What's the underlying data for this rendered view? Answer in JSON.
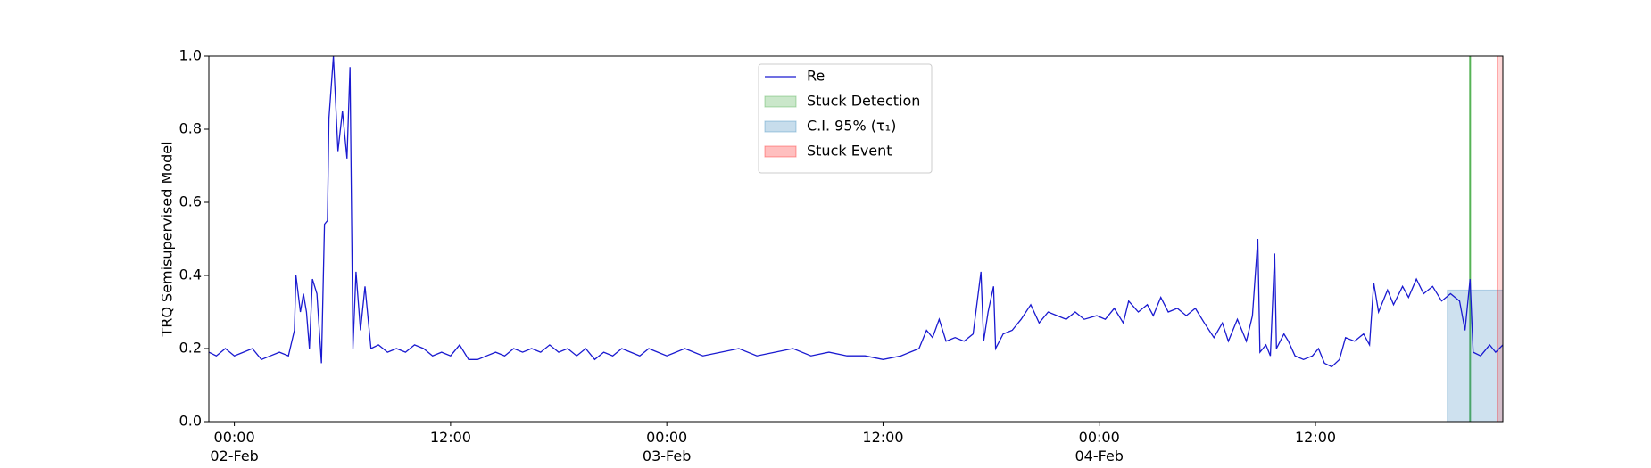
{
  "chart_data": {
    "type": "line",
    "ylabel": "TRQ Semisupervised Model",
    "x": [
      "1900-02-01 22:35",
      "1900-02-01 23:00",
      "1900-02-01 23:30",
      "1900-02-02 00:00",
      "1900-02-02 00:30",
      "1900-02-02 01:00",
      "1900-02-02 01:30",
      "1900-02-02 02:00",
      "1900-02-02 02:30",
      "1900-02-02 03:00",
      "1900-02-02 03:20",
      "1900-02-02 03:25",
      "1900-02-02 03:40",
      "1900-02-02 03:50",
      "1900-02-02 04:00",
      "1900-02-02 04:10",
      "1900-02-02 04:20",
      "1900-02-02 04:35",
      "1900-02-02 04:50",
      "1900-02-02 05:00",
      "1900-02-02 05:10",
      "1900-02-02 05:15",
      "1900-02-02 05:30",
      "1900-02-02 05:45",
      "1900-02-02 06:00",
      "1900-02-02 06:15",
      "1900-02-02 06:25",
      "1900-02-02 06:35",
      "1900-02-02 06:45",
      "1900-02-02 07:00",
      "1900-02-02 07:15",
      "1900-02-02 07:35",
      "1900-02-02 08:00",
      "1900-02-02 08:30",
      "1900-02-02 09:00",
      "1900-02-02 09:30",
      "1900-02-02 10:00",
      "1900-02-02 10:30",
      "1900-02-02 11:00",
      "1900-02-02 11:30",
      "1900-02-02 12:00",
      "1900-02-02 12:30",
      "1900-02-02 13:00",
      "1900-02-02 13:30",
      "1900-02-02 14:00",
      "1900-02-02 14:30",
      "1900-02-02 15:00",
      "1900-02-02 15:30",
      "1900-02-02 16:00",
      "1900-02-02 16:30",
      "1900-02-02 17:00",
      "1900-02-02 17:30",
      "1900-02-02 18:00",
      "1900-02-02 18:30",
      "1900-02-02 19:00",
      "1900-02-02 19:30",
      "1900-02-02 20:00",
      "1900-02-02 20:30",
      "1900-02-02 21:00",
      "1900-02-02 21:30",
      "1900-02-02 22:00",
      "1900-02-02 22:30",
      "1900-02-02 23:00",
      "1900-02-02 23:30",
      "1900-02-03 00:00",
      "1900-02-03 00:30",
      "1900-02-03 01:00",
      "1900-02-03 02:00",
      "1900-02-03 03:00",
      "1900-02-03 04:00",
      "1900-02-03 05:00",
      "1900-02-03 06:00",
      "1900-02-03 07:00",
      "1900-02-03 08:00",
      "1900-02-03 09:00",
      "1900-02-03 10:00",
      "1900-02-03 11:00",
      "1900-02-03 12:00",
      "1900-02-03 13:00",
      "1900-02-03 13:30",
      "1900-02-03 14:00",
      "1900-02-03 14:25",
      "1900-02-03 14:45",
      "1900-02-03 15:07",
      "1900-02-03 15:30",
      "1900-02-03 16:00",
      "1900-02-03 16:30",
      "1900-02-03 17:00",
      "1900-02-03 17:26",
      "1900-02-03 17:35",
      "1900-02-03 17:50",
      "1900-02-03 18:08",
      "1900-02-03 18:15",
      "1900-02-03 18:40",
      "1900-02-03 19:10",
      "1900-02-03 19:40",
      "1900-02-03 20:12",
      "1900-02-03 20:40",
      "1900-02-03 21:10",
      "1900-02-03 21:40",
      "1900-02-03 22:10",
      "1900-02-03 22:40",
      "1900-02-03 23:10",
      "1900-02-03 23:52",
      "1900-02-04 00:20",
      "1900-02-04 00:50",
      "1900-02-04 01:20",
      "1900-02-04 01:38",
      "1900-02-04 02:10",
      "1900-02-04 02:40",
      "1900-02-04 03:00",
      "1900-02-04 03:25",
      "1900-02-04 03:50",
      "1900-02-04 04:20",
      "1900-02-04 04:50",
      "1900-02-04 05:20",
      "1900-02-04 05:50",
      "1900-02-04 06:22",
      "1900-02-04 06:50",
      "1900-02-04 07:10",
      "1900-02-04 07:40",
      "1900-02-04 08:10",
      "1900-02-04 08:30",
      "1900-02-04 08:48",
      "1900-02-04 08:55",
      "1900-02-04 09:15",
      "1900-02-04 09:30",
      "1900-02-04 09:44",
      "1900-02-04 09:50",
      "1900-02-04 10:15",
      "1900-02-04 10:30",
      "1900-02-04 10:52",
      "1900-02-04 11:20",
      "1900-02-04 11:50",
      "1900-02-04 12:10",
      "1900-02-04 12:30",
      "1900-02-04 12:54",
      "1900-02-04 13:20",
      "1900-02-04 13:40",
      "1900-02-04 14:10",
      "1900-02-04 14:40",
      "1900-02-04 15:00",
      "1900-02-04 15:14",
      "1900-02-04 15:30",
      "1900-02-04 16:00",
      "1900-02-04 16:20",
      "1900-02-04 16:50",
      "1900-02-04 17:10",
      "1900-02-04 17:36",
      "1900-02-04 18:00",
      "1900-02-04 18:30",
      "1900-02-04 19:00",
      "1900-02-04 19:30",
      "1900-02-04 20:00",
      "1900-02-04 20:18",
      "1900-02-04 20:35",
      "1900-02-04 20:45",
      "1900-02-04 21:10",
      "1900-02-04 21:40",
      "1900-02-04 22:00",
      "1900-02-04 22:24"
    ],
    "series": [
      {
        "name": "Re",
        "color": "#1a1ad0",
        "values": [
          0.19,
          0.18,
          0.2,
          0.18,
          0.19,
          0.2,
          0.17,
          0.18,
          0.19,
          0.18,
          0.25,
          0.4,
          0.3,
          0.35,
          0.3,
          0.2,
          0.39,
          0.35,
          0.16,
          0.54,
          0.55,
          0.83,
          1.0,
          0.74,
          0.85,
          0.72,
          0.97,
          0.2,
          0.41,
          0.25,
          0.37,
          0.2,
          0.21,
          0.19,
          0.2,
          0.19,
          0.21,
          0.2,
          0.18,
          0.19,
          0.18,
          0.21,
          0.17,
          0.17,
          0.18,
          0.19,
          0.18,
          0.2,
          0.19,
          0.2,
          0.19,
          0.21,
          0.19,
          0.2,
          0.18,
          0.2,
          0.17,
          0.19,
          0.18,
          0.2,
          0.19,
          0.18,
          0.2,
          0.19,
          0.18,
          0.19,
          0.2,
          0.18,
          0.19,
          0.2,
          0.18,
          0.19,
          0.2,
          0.18,
          0.19,
          0.18,
          0.18,
          0.17,
          0.18,
          0.19,
          0.2,
          0.25,
          0.23,
          0.28,
          0.22,
          0.23,
          0.22,
          0.24,
          0.41,
          0.22,
          0.3,
          0.37,
          0.2,
          0.24,
          0.25,
          0.28,
          0.32,
          0.27,
          0.3,
          0.29,
          0.28,
          0.3,
          0.28,
          0.29,
          0.28,
          0.31,
          0.27,
          0.33,
          0.3,
          0.32,
          0.29,
          0.34,
          0.3,
          0.31,
          0.29,
          0.31,
          0.27,
          0.23,
          0.27,
          0.22,
          0.28,
          0.22,
          0.29,
          0.5,
          0.19,
          0.21,
          0.18,
          0.46,
          0.2,
          0.24,
          0.22,
          0.18,
          0.17,
          0.18,
          0.2,
          0.16,
          0.15,
          0.17,
          0.23,
          0.22,
          0.24,
          0.21,
          0.38,
          0.3,
          0.36,
          0.32,
          0.37,
          0.34,
          0.39,
          0.35,
          0.37,
          0.33,
          0.35,
          0.33,
          0.25,
          0.39,
          0.19,
          0.18,
          0.21,
          0.19,
          0.21
        ]
      }
    ],
    "spans": [
      {
        "name": "Stuck Detection",
        "color": "#2ca02c",
        "x": "1900-02-04 20:35"
      },
      {
        "name": "C.I. 95% (τ₁)",
        "color": "#1f77b4",
        "x": [
          "1900-02-04 19:19",
          "1900-02-04 22:24"
        ],
        "y": [
          0,
          0.36
        ]
      },
      {
        "name": "Stuck Event",
        "color": "#ff0000",
        "x": [
          "1900-02-04 22:06",
          "1900-02-04 22:24"
        ]
      }
    ],
    "xlim": [
      "1900-02-01 22:35",
      "1900-02-04 22:24"
    ],
    "xticks": [
      {
        "value": "1900-02-02 00:00",
        "label": "00:00\n02-Feb\n1900"
      },
      {
        "value": "1900-02-02 12:00",
        "label": "12:00"
      },
      {
        "value": "1900-02-03 00:00",
        "label": "00:00\n03-Feb"
      },
      {
        "value": "1900-02-03 12:00",
        "label": "12:00"
      },
      {
        "value": "1900-02-04 00:00",
        "label": "00:00\n04-Feb"
      },
      {
        "value": "1900-02-04 12:00",
        "label": "12:00"
      }
    ],
    "ylim": [
      0,
      1
    ],
    "yticks": [
      {
        "value": 0,
        "label": "0.0"
      },
      0.2,
      0.4,
      0.6,
      0.8,
      {
        "value": 1,
        "label": "1.0"
      }
    ],
    "legend": "upper center"
  }
}
